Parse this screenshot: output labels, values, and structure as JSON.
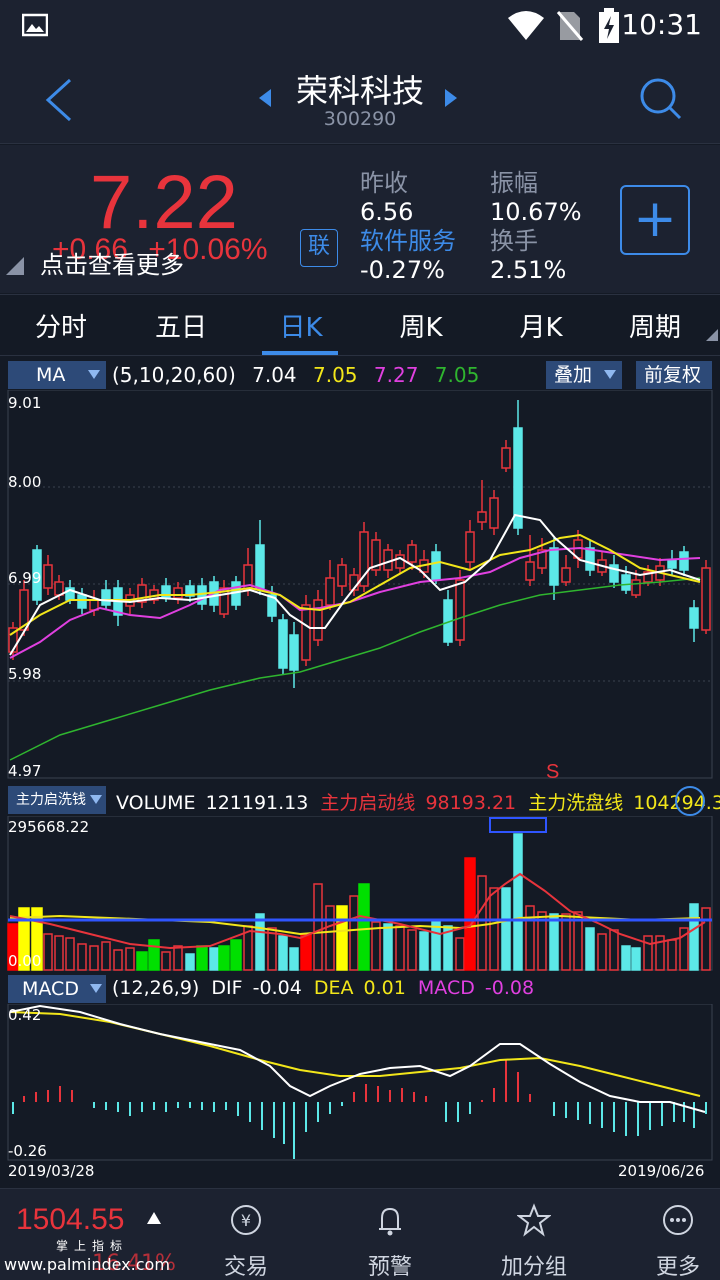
{
  "status": {
    "time": "10:31"
  },
  "header": {
    "title": "荣科科技",
    "code": "300290"
  },
  "quote": {
    "price": "7.22",
    "change": "+0.66",
    "change_pct": "+10.06%",
    "tip": "点击查看更多",
    "link_badge": "联",
    "stats": [
      {
        "label": "昨收",
        "value": "6.56"
      },
      {
        "label": "振幅",
        "value": "10.67%"
      },
      {
        "label": "软件服务",
        "value": "-0.27%"
      },
      {
        "label": "换手",
        "value": "2.51%"
      }
    ]
  },
  "tabs": [
    "分时",
    "五日",
    "日K",
    "周K",
    "月K",
    "周期"
  ],
  "active_tab": "日K",
  "kline": {
    "indicator": "MA",
    "params": "(5,10,20,60)",
    "ma_values": [
      "7.04",
      "7.05",
      "7.27",
      "7.05"
    ],
    "ma_colors": [
      "#ffffff",
      "#f2e61a",
      "#e040e0",
      "#2fb52f"
    ],
    "overlay_button": "叠加",
    "adjust_button": "前复权",
    "y_labels": [
      "9.01",
      "8.00",
      "6.99",
      "5.98",
      "4.97"
    ],
    "signal": "S"
  },
  "volume": {
    "selector": "主力启洗钱",
    "label": "VOLUME",
    "value": "121191.13",
    "line1_label": "主力启动线",
    "line1_value": "98193.21",
    "line2_label": "主力洗盘线",
    "line2_value": "104294.30",
    "y_max": "295668.22",
    "y_min": "0.00"
  },
  "macd": {
    "selector": "MACD",
    "params": "(12,26,9)",
    "dif_label": "DIF",
    "dif_value": "-0.04",
    "dea_label": "DEA",
    "dea_value": "0.01",
    "macd_label": "MACD",
    "macd_value": "-0.08",
    "y_max": "0.42",
    "y_min": "-0.26",
    "date_start": "2019/03/28",
    "date_end": "2019/06/26"
  },
  "bottom": {
    "index_value": "1504.55",
    "index_sub": "掌上指标",
    "index_pct": "16.41%",
    "nav": [
      "交易",
      "预警",
      "加分组",
      "更多"
    ]
  },
  "watermark": "www.palmindex.com",
  "colors": {
    "up": "#e8343c",
    "down": "#5ce8e8",
    "accent": "#3d8be8",
    "bg": "#141a25"
  }
}
